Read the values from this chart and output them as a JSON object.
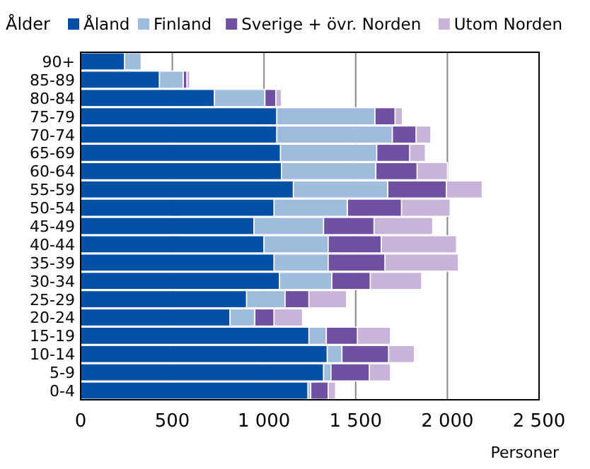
{
  "chart_data": {
    "type": "bar",
    "orientation": "horizontal",
    "stacked": true,
    "ylabel": "Ålder",
    "xlabel": "Personer",
    "categories": [
      "90+",
      "85-89",
      "80-84",
      "75-79",
      "70-74",
      "65-69",
      "60-64",
      "55-59",
      "50-54",
      "45-49",
      "40-44",
      "35-39",
      "30-34",
      "25-29",
      "20-24",
      "15-19",
      "10-14",
      "5-9",
      "0-4"
    ],
    "series": [
      {
        "name": "Åland",
        "color": "#0450a6",
        "values": [
          240,
          430,
          730,
          1070,
          1070,
          1090,
          1095,
          1160,
          1055,
          945,
          1000,
          1055,
          1085,
          905,
          815,
          1245,
          1345,
          1325,
          1240
        ]
      },
      {
        "name": "Finland",
        "color": "#a0bcdc",
        "values": [
          90,
          130,
          275,
          535,
          630,
          525,
          515,
          515,
          400,
          380,
          350,
          295,
          285,
          210,
          135,
          95,
          80,
          40,
          15
        ]
      },
      {
        "name": "Sverige + övr. Norden",
        "color": "#7050a0",
        "values": [
          0,
          20,
          60,
          110,
          130,
          180,
          225,
          320,
          295,
          275,
          290,
          310,
          210,
          130,
          105,
          170,
          255,
          210,
          95
        ]
      },
      {
        "name": "Utom Norden",
        "color": "#c8b4d8",
        "values": [
          0,
          15,
          30,
          40,
          80,
          85,
          165,
          195,
          265,
          320,
          410,
          400,
          280,
          205,
          155,
          180,
          140,
          115,
          40
        ]
      }
    ],
    "xlim": [
      0,
      2500
    ],
    "xticks": [
      0,
      500,
      {
        "value": 1000,
        "label": "1 000"
      },
      {
        "value": 1500,
        "label": "1 500"
      },
      {
        "value": 2000,
        "label": "2 000"
      },
      {
        "value": 2500,
        "label": "2 500"
      }
    ],
    "grid": "x",
    "legend": "top"
  }
}
